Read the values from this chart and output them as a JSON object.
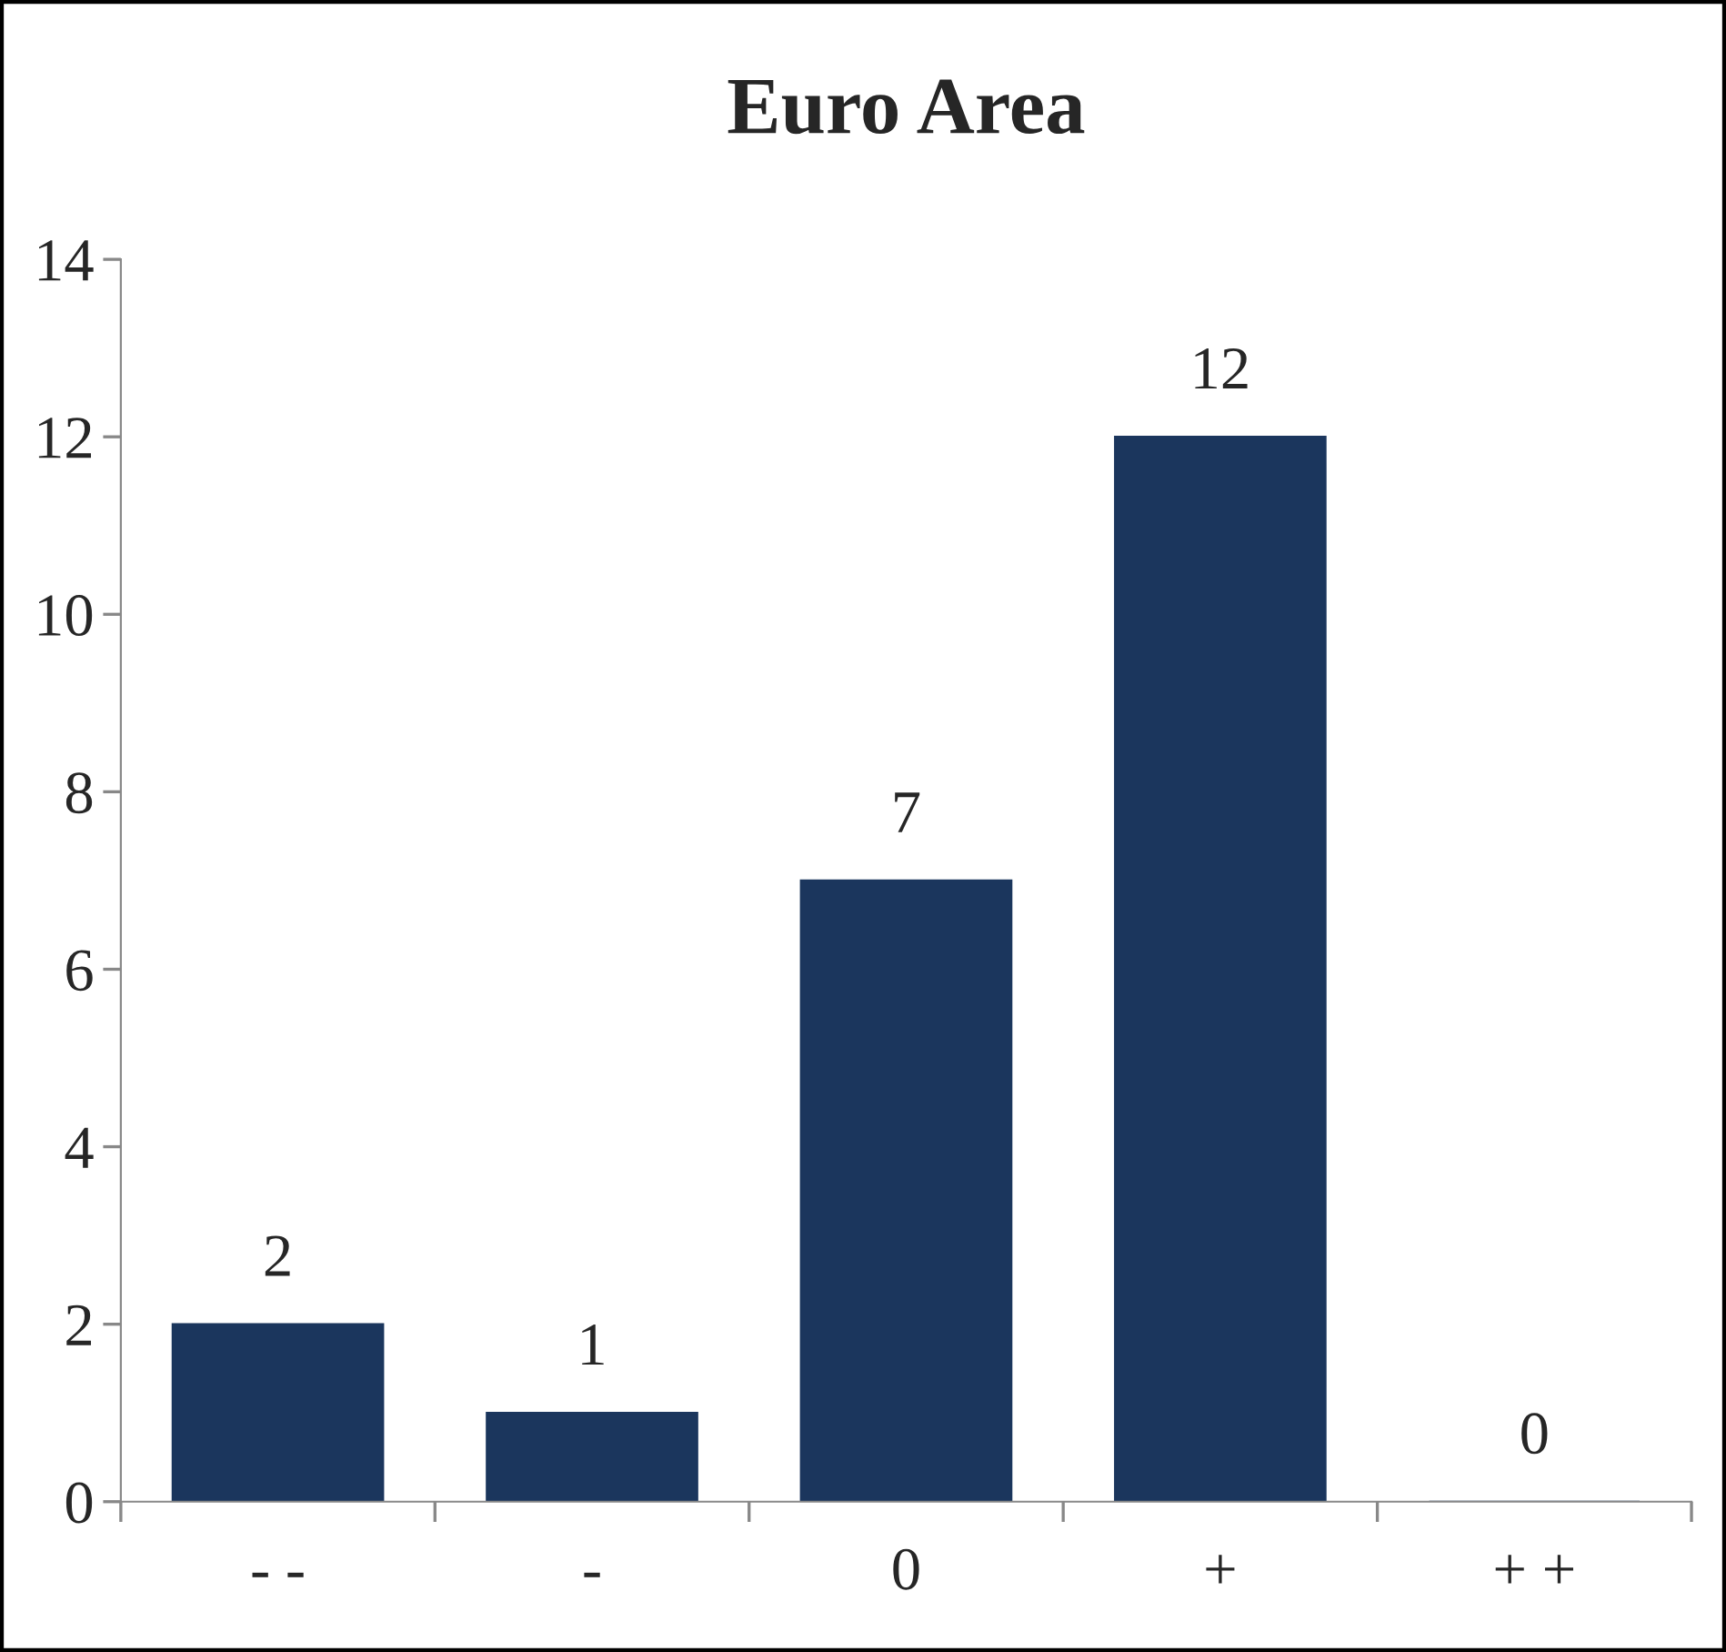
{
  "chart_data": {
    "type": "bar",
    "title": "Euro Area",
    "categories": [
      "- -",
      "-",
      "0",
      "+",
      "+ +"
    ],
    "values": [
      2,
      1,
      7,
      12,
      0
    ],
    "color": "#1b365d",
    "ylim": [
      0,
      14
    ],
    "yticks": [
      0,
      2,
      4,
      6,
      8,
      10,
      12,
      14
    ],
    "data_labels": true,
    "grid": false,
    "legend": false
  }
}
